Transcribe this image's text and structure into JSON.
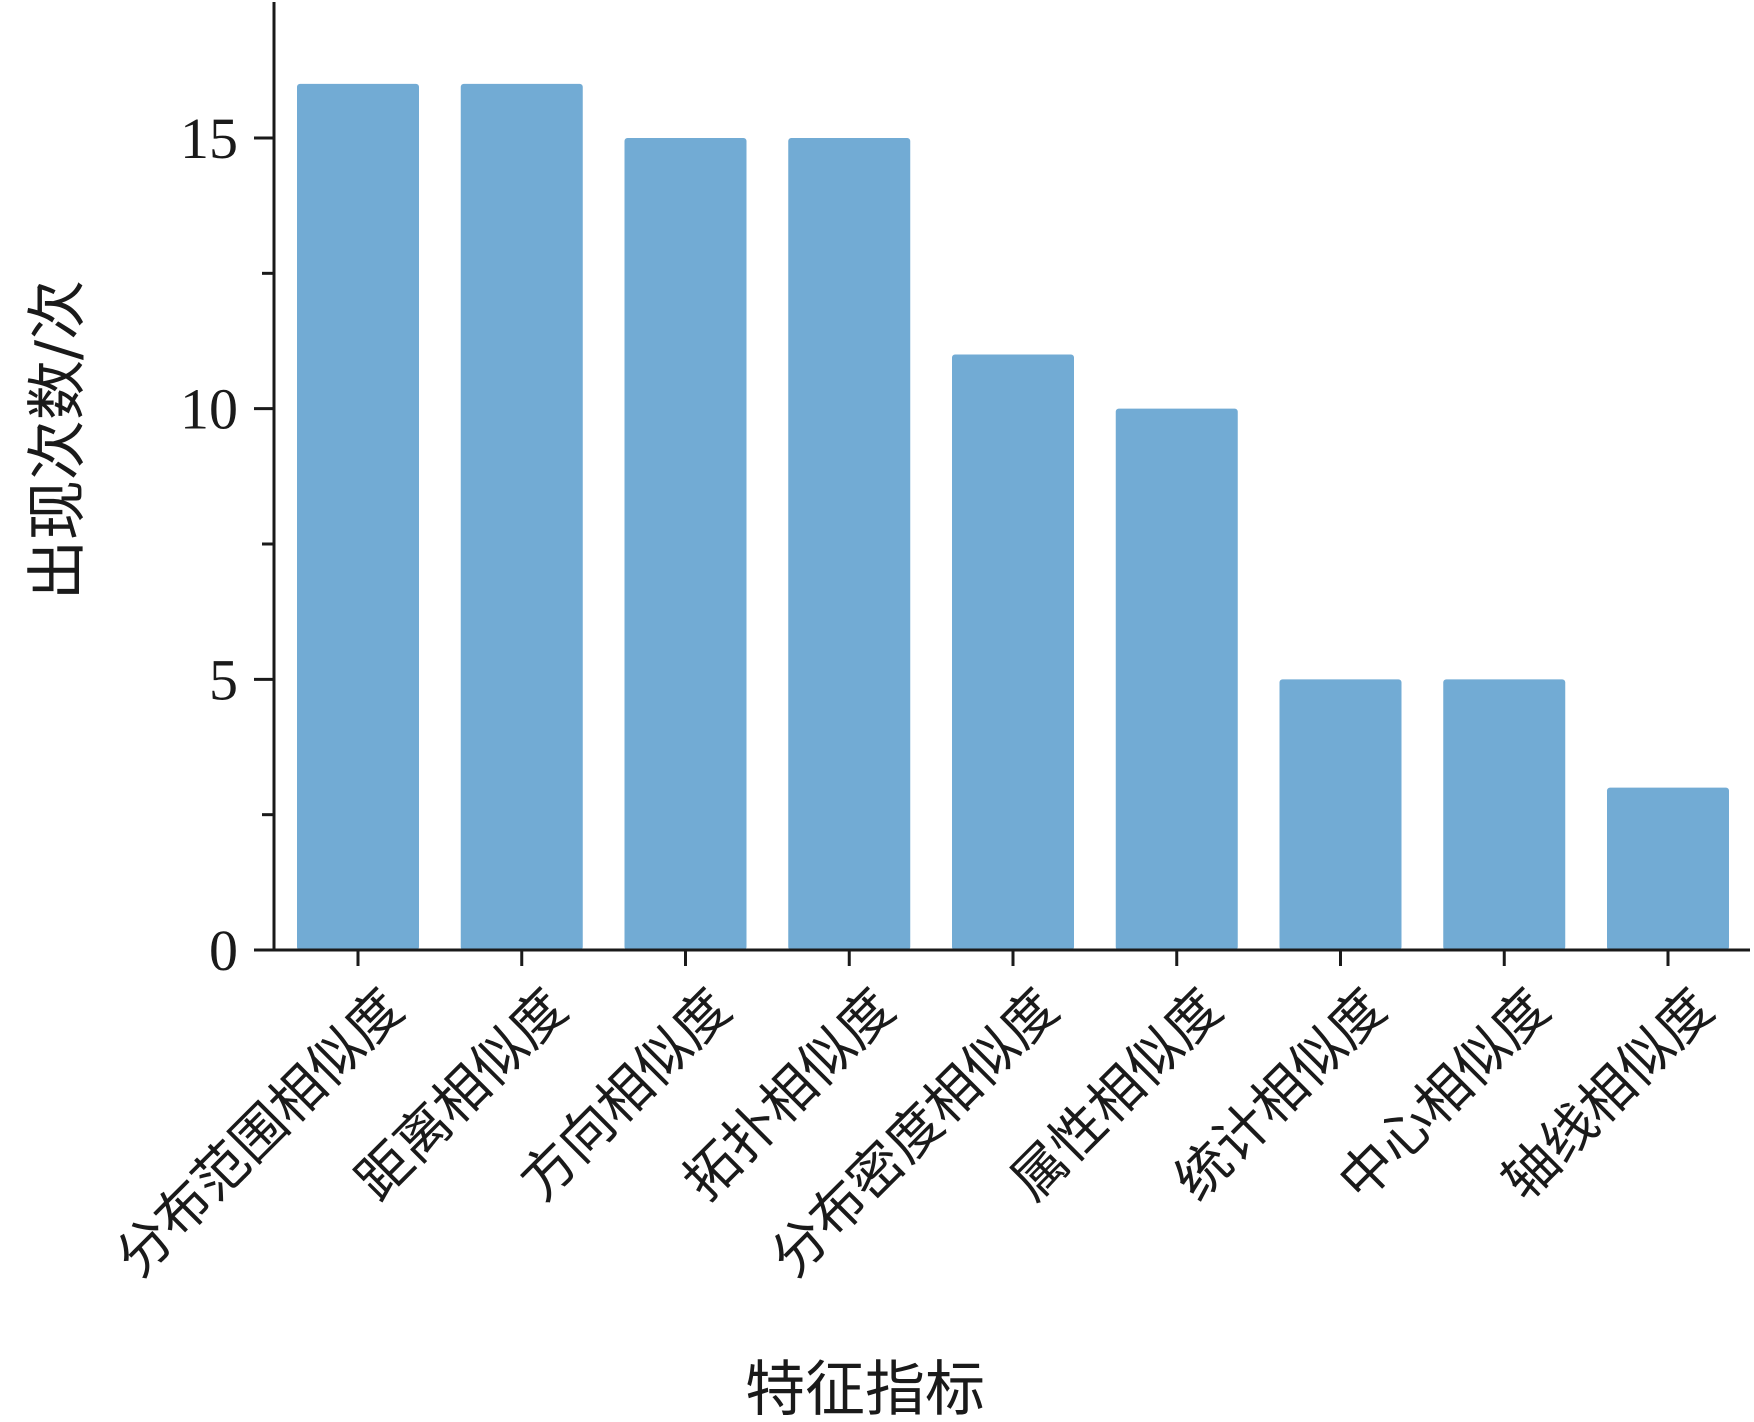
{
  "chart_data": {
    "type": "bar",
    "title": "",
    "xlabel": "特征指标",
    "ylabel": "出现次数/次",
    "categories": [
      "分布范围相似度",
      "距离相似度",
      "方向相似度",
      "拓扑相似度",
      "分布密度相似度",
      "属性相似度",
      "统计相似度",
      "中心相似度",
      "轴线相似度"
    ],
    "values": [
      16,
      16,
      15,
      15,
      11,
      10,
      5,
      5,
      3
    ],
    "ylim": [
      0,
      17.5
    ],
    "yticks": [
      0,
      5,
      10,
      15
    ],
    "yminor_ticks": [
      2.5,
      7.5,
      12.5
    ],
    "grid": false,
    "bar_color": "#72abd4",
    "axis_color": "#1a1a1a"
  }
}
